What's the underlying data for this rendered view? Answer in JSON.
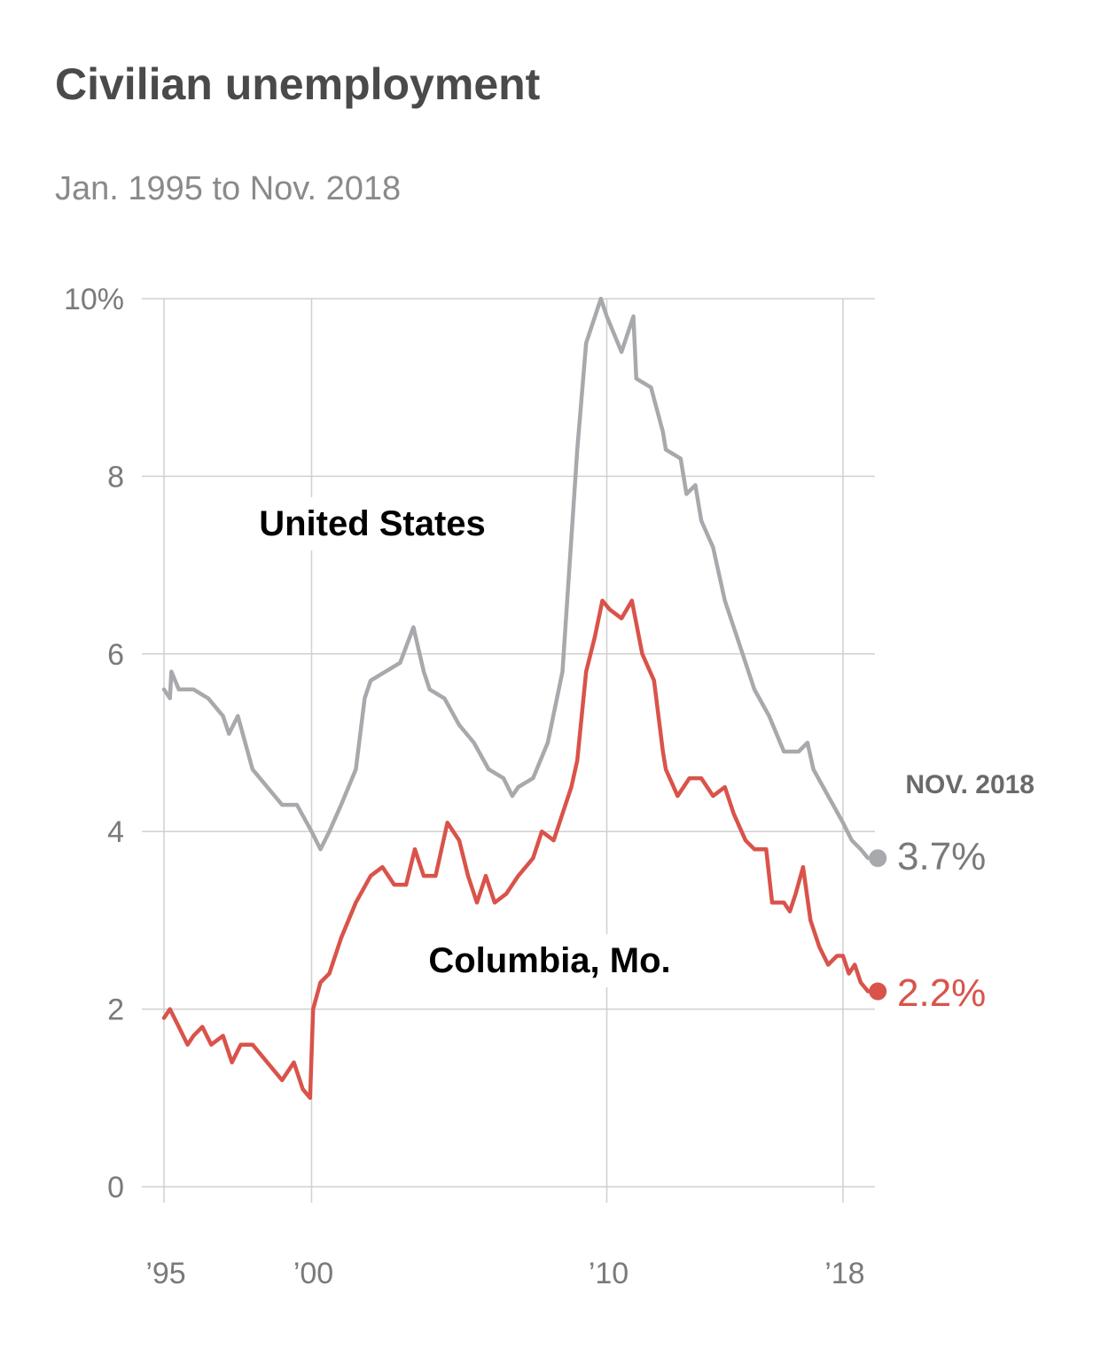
{
  "header": {
    "title": "Civilian unemployment",
    "subtitle": "Jan. 1995 to Nov. 2018"
  },
  "colors": {
    "us": "#a7a9ac",
    "columbia": "#d9534a",
    "grid": "#d0d0d0",
    "text": "#4a4a4a",
    "muted": "#8a8a8a"
  },
  "chart_data": {
    "type": "line",
    "title": "Civilian unemployment",
    "subtitle": "Jan. 1995 to Nov. 2018",
    "xlim": [
      1995.0,
      2019.0
    ],
    "ylim": [
      0,
      10
    ],
    "grid": true,
    "y_ticks": [
      {
        "value": 0,
        "label": "0"
      },
      {
        "value": 2,
        "label": "2"
      },
      {
        "value": 4,
        "label": "4"
      },
      {
        "value": 6,
        "label": "6"
      },
      {
        "value": 8,
        "label": "8"
      },
      {
        "value": 10,
        "label": "10%"
      }
    ],
    "x_ticks": [
      {
        "value": 1995,
        "label": "’95"
      },
      {
        "value": 2000,
        "label": "’00"
      },
      {
        "value": 2010,
        "label": "’10"
      },
      {
        "value": 2018,
        "label": "’18"
      }
    ],
    "endpoint_header": "NOV. 2018",
    "series": [
      {
        "key": "us",
        "name": "United States",
        "color": "#a7a9ac",
        "end_label": "3.7%",
        "points": [
          [
            1995.0,
            5.6
          ],
          [
            1995.2,
            5.5
          ],
          [
            1995.25,
            5.8
          ],
          [
            1995.5,
            5.6
          ],
          [
            1996.0,
            5.6
          ],
          [
            1996.5,
            5.5
          ],
          [
            1997.0,
            5.3
          ],
          [
            1997.2,
            5.1
          ],
          [
            1997.5,
            5.3
          ],
          [
            1998.0,
            4.7
          ],
          [
            1998.5,
            4.5
          ],
          [
            1999.0,
            4.3
          ],
          [
            1999.5,
            4.3
          ],
          [
            2000.0,
            4.0
          ],
          [
            2000.3,
            3.8
          ],
          [
            2000.6,
            4.0
          ],
          [
            2001.0,
            4.3
          ],
          [
            2001.5,
            4.7
          ],
          [
            2001.8,
            5.5
          ],
          [
            2002.0,
            5.7
          ],
          [
            2002.5,
            5.8
          ],
          [
            2003.0,
            5.9
          ],
          [
            2003.45,
            6.3
          ],
          [
            2003.8,
            5.8
          ],
          [
            2004.0,
            5.6
          ],
          [
            2004.5,
            5.5
          ],
          [
            2005.0,
            5.2
          ],
          [
            2005.5,
            5.0
          ],
          [
            2006.0,
            4.7
          ],
          [
            2006.5,
            4.6
          ],
          [
            2006.8,
            4.4
          ],
          [
            2007.0,
            4.5
          ],
          [
            2007.5,
            4.6
          ],
          [
            2008.0,
            5.0
          ],
          [
            2008.5,
            5.8
          ],
          [
            2009.0,
            8.3
          ],
          [
            2009.3,
            9.5
          ],
          [
            2009.6,
            9.8
          ],
          [
            2009.8,
            10.0
          ],
          [
            2010.0,
            9.8
          ],
          [
            2010.5,
            9.4
          ],
          [
            2010.9,
            9.8
          ],
          [
            2011.0,
            9.1
          ],
          [
            2011.5,
            9.0
          ],
          [
            2011.9,
            8.5
          ],
          [
            2012.0,
            8.3
          ],
          [
            2012.5,
            8.2
          ],
          [
            2012.7,
            7.8
          ],
          [
            2013.0,
            7.9
          ],
          [
            2013.2,
            7.5
          ],
          [
            2013.6,
            7.2
          ],
          [
            2014.0,
            6.6
          ],
          [
            2014.3,
            6.3
          ],
          [
            2014.6,
            6.0
          ],
          [
            2015.0,
            5.6
          ],
          [
            2015.5,
            5.3
          ],
          [
            2016.0,
            4.9
          ],
          [
            2016.5,
            4.9
          ],
          [
            2016.8,
            5.0
          ],
          [
            2017.0,
            4.7
          ],
          [
            2017.5,
            4.4
          ],
          [
            2018.0,
            4.1
          ],
          [
            2018.3,
            3.9
          ],
          [
            2018.6,
            3.8
          ],
          [
            2018.85,
            3.7
          ]
        ]
      },
      {
        "key": "columbia",
        "name": "Columbia, Mo.",
        "color": "#d9534a",
        "end_label": "2.2%",
        "points": [
          [
            1995.0,
            1.9
          ],
          [
            1995.2,
            2.0
          ],
          [
            1995.5,
            1.8
          ],
          [
            1995.8,
            1.6
          ],
          [
            1996.0,
            1.7
          ],
          [
            1996.3,
            1.8
          ],
          [
            1996.6,
            1.6
          ],
          [
            1997.0,
            1.7
          ],
          [
            1997.3,
            1.4
          ],
          [
            1997.6,
            1.6
          ],
          [
            1998.0,
            1.6
          ],
          [
            1998.5,
            1.4
          ],
          [
            1999.0,
            1.2
          ],
          [
            1999.4,
            1.4
          ],
          [
            1999.7,
            1.1
          ],
          [
            1999.95,
            1.0
          ],
          [
            2000.05,
            2.0
          ],
          [
            2000.3,
            2.3
          ],
          [
            2000.6,
            2.4
          ],
          [
            2001.0,
            2.8
          ],
          [
            2001.5,
            3.2
          ],
          [
            2002.0,
            3.5
          ],
          [
            2002.4,
            3.6
          ],
          [
            2002.8,
            3.4
          ],
          [
            2003.2,
            3.4
          ],
          [
            2003.5,
            3.8
          ],
          [
            2003.8,
            3.5
          ],
          [
            2004.2,
            3.5
          ],
          [
            2004.6,
            4.1
          ],
          [
            2005.0,
            3.9
          ],
          [
            2005.3,
            3.5
          ],
          [
            2005.6,
            3.2
          ],
          [
            2005.9,
            3.5
          ],
          [
            2006.2,
            3.2
          ],
          [
            2006.6,
            3.3
          ],
          [
            2007.0,
            3.5
          ],
          [
            2007.5,
            3.7
          ],
          [
            2007.8,
            4.0
          ],
          [
            2008.2,
            3.9
          ],
          [
            2008.5,
            4.2
          ],
          [
            2008.8,
            4.5
          ],
          [
            2009.0,
            4.8
          ],
          [
            2009.3,
            5.8
          ],
          [
            2009.6,
            6.2
          ],
          [
            2009.85,
            6.6
          ],
          [
            2010.1,
            6.5
          ],
          [
            2010.5,
            6.4
          ],
          [
            2010.85,
            6.6
          ],
          [
            2011.2,
            6.0
          ],
          [
            2011.6,
            5.7
          ],
          [
            2011.9,
            4.9
          ],
          [
            2012.0,
            4.7
          ],
          [
            2012.4,
            4.4
          ],
          [
            2012.8,
            4.6
          ],
          [
            2013.2,
            4.6
          ],
          [
            2013.6,
            4.4
          ],
          [
            2014.0,
            4.5
          ],
          [
            2014.3,
            4.2
          ],
          [
            2014.7,
            3.9
          ],
          [
            2015.0,
            3.8
          ],
          [
            2015.4,
            3.8
          ],
          [
            2015.6,
            3.2
          ],
          [
            2016.0,
            3.2
          ],
          [
            2016.2,
            3.1
          ],
          [
            2016.4,
            3.3
          ],
          [
            2016.65,
            3.6
          ],
          [
            2016.9,
            3.0
          ],
          [
            2017.2,
            2.7
          ],
          [
            2017.5,
            2.5
          ],
          [
            2017.8,
            2.6
          ],
          [
            2018.0,
            2.6
          ],
          [
            2018.2,
            2.4
          ],
          [
            2018.4,
            2.5
          ],
          [
            2018.6,
            2.3
          ],
          [
            2018.85,
            2.2
          ]
        ]
      }
    ]
  }
}
